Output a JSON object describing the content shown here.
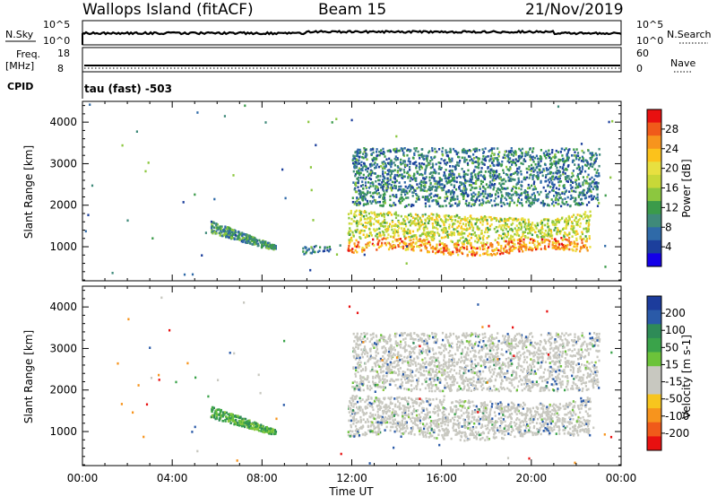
{
  "header": {
    "title": "Wallops Island (fitACF)",
    "beam": "Beam 15",
    "date": "21/Nov/2019"
  },
  "top_panels": {
    "nsky_label": "N.Sky",
    "nsearch_label": "N.Search",
    "nsky_ticks": [
      "10^5",
      "10^0"
    ],
    "nsearch_ticks": [
      "10^5",
      "10^0"
    ],
    "freq_label_1": "Freq.",
    "freq_label_2": "[MHz]",
    "freq_ticks": [
      "18",
      "8"
    ],
    "nave_label": "Nave",
    "nave_ticks": [
      "60",
      "0"
    ],
    "cpid_label": "CPID",
    "cpid_text": "tau (fast) -503"
  },
  "power_colorbar": {
    "label": "Power [dB]",
    "ticks": [
      "28",
      "24",
      "20",
      "16",
      "12",
      "8",
      "4"
    ],
    "colors": [
      "#e81010",
      "#f05a1a",
      "#f7941d",
      "#fcc21b",
      "#e8e040",
      "#c8d838",
      "#8cc73f",
      "#3b9b4a",
      "#3f8a7a",
      "#2f6aa8",
      "#1c3f9c",
      "#1400e8"
    ]
  },
  "velocity_colorbar": {
    "label": "Velocity [m s-1]",
    "ticks": [
      "200",
      "100",
      "50",
      "15",
      "-15",
      "-50",
      "-100",
      "-200"
    ],
    "colors": [
      "#1c3c9c",
      "#2a5aa8",
      "#2e8b57",
      "#3aa34a",
      "#6cc33a",
      "#c8c8c0",
      "#c8c8c0",
      "#f7c51e",
      "#f7941d",
      "#f05a1a",
      "#e81010"
    ]
  },
  "chart_data": [
    {
      "type": "heatmap",
      "name": "Power",
      "ylabel": "Slant Range [km]",
      "xlabel": "Time UT",
      "x_ticks": [
        "00:00",
        "04:00",
        "08:00",
        "12:00",
        "16:00",
        "20:00",
        "00:00"
      ],
      "y_ticks": [
        1000,
        2000,
        3000,
        4000
      ],
      "xlim_hours": [
        0,
        24
      ],
      "ylim_km": [
        180,
        4500
      ],
      "colorbar_range_db": [
        0,
        32
      ],
      "features": [
        {
          "region": "scatter patch",
          "t_start_h": 5.7,
          "t_end_h": 8.6,
          "range_km": [
            880,
            1650
          ],
          "typical_db": 10
        },
        {
          "region": "small patch",
          "t_start_h": 9.7,
          "t_end_h": 11.0,
          "range_km": [
            850,
            1050
          ],
          "typical_db": 8
        },
        {
          "region": "main band",
          "t_start_h": 11.8,
          "t_end_h": 22.6,
          "range_km": [
            850,
            1900
          ],
          "typical_db": 18
        },
        {
          "region": "upper band",
          "t_start_h": 12.0,
          "t_end_h": 23.0,
          "range_km": [
            2000,
            3400
          ],
          "typical_db": 8
        }
      ]
    },
    {
      "type": "heatmap",
      "name": "Velocity",
      "ylabel": "Slant Range [km]",
      "xlabel": "Time UT",
      "x_ticks": [
        "00:00",
        "04:00",
        "08:00",
        "12:00",
        "16:00",
        "20:00",
        "00:00"
      ],
      "y_ticks": [
        1000,
        2000,
        3000,
        4000
      ],
      "xlim_hours": [
        0,
        24
      ],
      "ylim_km": [
        180,
        4500
      ],
      "colorbar_range_ms": [
        -200,
        200
      ],
      "features": [
        {
          "region": "scatter patch",
          "t_start_h": 5.7,
          "t_end_h": 8.6,
          "range_km": [
            880,
            1650
          ],
          "typical_velocity": 40
        },
        {
          "region": "main band (ground scatter)",
          "t_start_h": 11.8,
          "t_end_h": 22.6,
          "range_km": [
            850,
            1900
          ],
          "typical_velocity": 0
        },
        {
          "region": "upper band",
          "t_start_h": 12.0,
          "t_end_h": 23.0,
          "range_km": [
            2000,
            3400
          ],
          "typical_velocity": 0
        }
      ]
    }
  ]
}
